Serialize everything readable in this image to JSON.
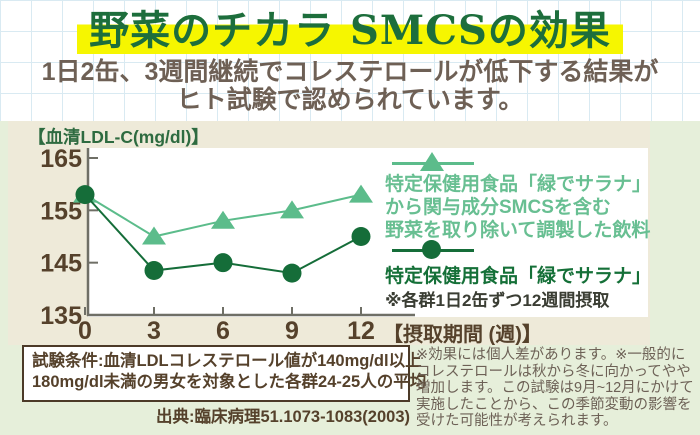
{
  "header": {
    "title": "野菜のチカラ SMCSの効果",
    "subtitle_line1": "1日2缶、3週間継続でコレステロールが低下する結果が",
    "subtitle_line2": "ヒト試験で認められています。",
    "highlight_color": "#f6f600",
    "title_color": "#1d6e3c"
  },
  "chart_data": {
    "type": "line",
    "title": "",
    "ylabel": "【血清LDL-C(mg/dl)】",
    "xlabel": "【摂取期間 (週)】",
    "x": [
      0,
      3,
      6,
      9,
      12
    ],
    "yticks": [
      165,
      155,
      145,
      135
    ],
    "ylim": [
      135,
      165
    ],
    "grid": false,
    "legend_position": "right",
    "series": [
      {
        "name": "特定保健用食品「緑でサラナ」から関与成分SMCSを含む野菜を取り除いて調製した飲料",
        "marker": "triangle",
        "color": "#5cbc8b",
        "values": [
          158,
          150,
          153,
          155,
          158
        ]
      },
      {
        "name": "特定保健用食品「緑でサラナ」",
        "marker": "circle",
        "color": "#156d39",
        "values": [
          158,
          143.5,
          145,
          143,
          150
        ]
      }
    ],
    "axis_color": "#6f6f66",
    "tick_label_color": "#55412b"
  },
  "legend": {
    "triangle_label_lines": [
      "特定保健用食品「緑でサラナ」",
      "から関与成分SMCSを含む",
      "野菜を取り除いて調製した飲料"
    ],
    "circle_label": "特定保健用食品「緑でサラナ」",
    "note": "※各群1日2缶ずつ12週間摂取"
  },
  "footer": {
    "conditions_line1": "試験条件:血清LDLコレステロール値が140mg/dl以上",
    "conditions_line2": "180mg/dl未満の男女を対象とした各群24-25人の平均",
    "source": "出典:臨床病理51.1073-1083(2003)",
    "disclaimer_lines": [
      "※効果には個人差があります。※一般的に",
      "コレステロールは秋から冬に向かってやや",
      "増加します。この試験は9月~12月にかけて",
      "実施したことから、この季節変動の影響を",
      "受けた可能性が考えられます。"
    ]
  }
}
